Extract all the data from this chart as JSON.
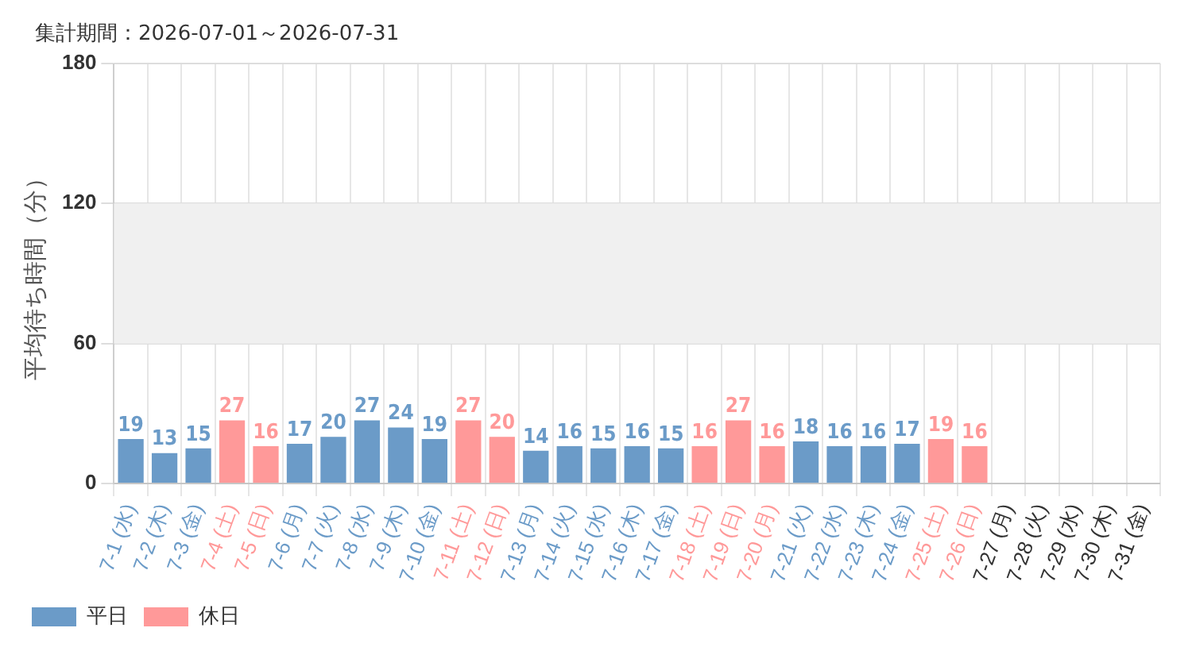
{
  "chart_data": {
    "type": "bar",
    "title": "集計期間：2026-07-01～2026-07-31",
    "ylabel": "平均待ち時間（分）",
    "categories": [
      "7-1 (水)",
      "7-2 (木)",
      "7-3 (金)",
      "7-4 (土)",
      "7-5 (日)",
      "7-6 (月)",
      "7-7 (火)",
      "7-8 (水)",
      "7-9 (木)",
      "7-10 (金)",
      "7-11 (土)",
      "7-12 (日)",
      "7-13 (月)",
      "7-14 (火)",
      "7-15 (水)",
      "7-16 (木)",
      "7-17 (金)",
      "7-18 (土)",
      "7-19 (日)",
      "7-20 (月)",
      "7-21 (火)",
      "7-22 (水)",
      "7-23 (木)",
      "7-24 (金)",
      "7-25 (土)",
      "7-26 (日)",
      "7-27 (月)",
      "7-28 (火)",
      "7-29 (水)",
      "7-30 (木)",
      "7-31 (金)"
    ],
    "series": [
      {
        "name": "平日",
        "color": "#6b9bc8",
        "values": [
          19,
          13,
          15,
          null,
          null,
          17,
          20,
          27,
          24,
          19,
          null,
          null,
          14,
          16,
          15,
          16,
          15,
          null,
          null,
          null,
          18,
          16,
          16,
          17,
          null,
          null,
          null,
          null,
          null,
          null,
          null
        ]
      },
      {
        "name": "休日",
        "color": "#ff9999",
        "values": [
          null,
          null,
          null,
          27,
          16,
          null,
          null,
          null,
          null,
          null,
          27,
          20,
          null,
          null,
          null,
          null,
          null,
          16,
          27,
          16,
          null,
          null,
          null,
          null,
          19,
          16,
          null,
          null,
          null,
          null,
          null
        ]
      }
    ],
    "ylim": [
      0,
      180
    ],
    "yticks": [
      0,
      60,
      120,
      180
    ],
    "bands": [
      {
        "axis": "y",
        "from": 60,
        "to": 120,
        "color": "#f0f0f0"
      }
    ],
    "grid": true,
    "legend": "bottom left",
    "data_labels": true
  }
}
